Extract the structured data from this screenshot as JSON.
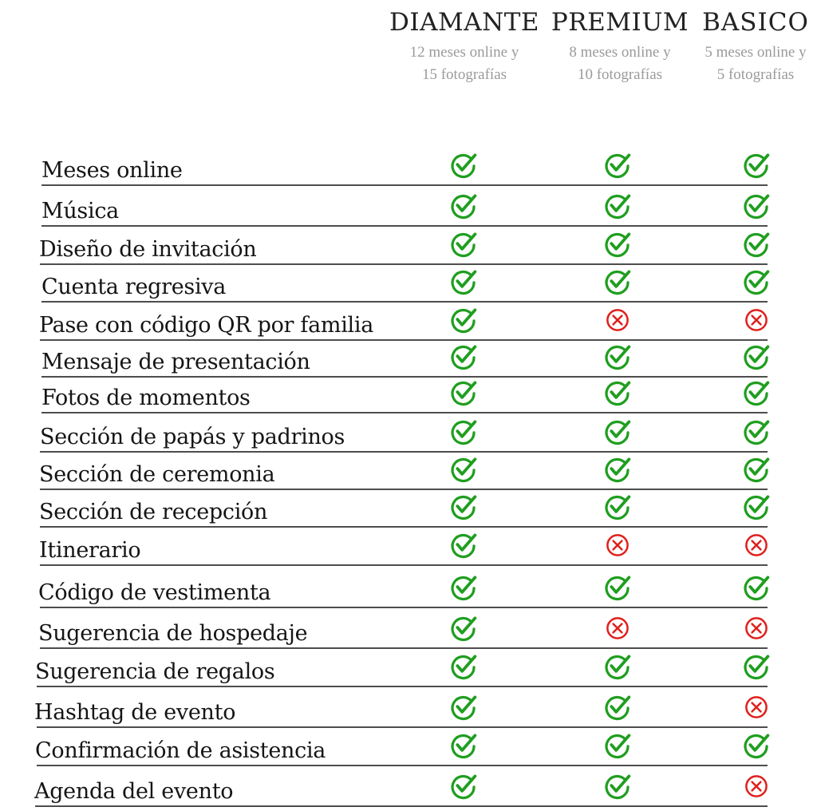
{
  "plans": [
    {
      "name": "DIAMANTE",
      "desc_line1": "12 meses online y",
      "desc_line2": "15 fotografías"
    },
    {
      "name": "PREMIUM",
      "desc_line1": "8 meses online y",
      "desc_line2": "10 fotografías"
    },
    {
      "name": "BASICO",
      "desc_line1": "5 meses online y",
      "desc_line2": "5 fotografías"
    }
  ],
  "colors": {
    "included": "#1f9e1f",
    "excluded": "#e0201c",
    "line": "#4d4d4d"
  },
  "icons": {
    "included": "check-circle-icon",
    "excluded": "x-circle-icon"
  },
  "features": [
    {
      "label": "Meses online",
      "included": [
        true,
        true,
        true
      ]
    },
    {
      "label": "Música",
      "included": [
        true,
        true,
        true
      ]
    },
    {
      "label": "Diseño de invitación",
      "included": [
        true,
        true,
        true
      ]
    },
    {
      "label": "Cuenta regresiva",
      "included": [
        true,
        true,
        true
      ]
    },
    {
      "label": "Pase con código QR por familia",
      "included": [
        true,
        false,
        false
      ]
    },
    {
      "label": "Mensaje de presentación",
      "included": [
        true,
        true,
        true
      ]
    },
    {
      "label": "Fotos de momentos",
      "included": [
        true,
        true,
        true
      ]
    },
    {
      "label": "Sección de papás y padrinos",
      "included": [
        true,
        true,
        true
      ]
    },
    {
      "label": "Sección de ceremonia",
      "included": [
        true,
        true,
        true
      ]
    },
    {
      "label": "Sección de recepción",
      "included": [
        true,
        true,
        true
      ]
    },
    {
      "label": "Itinerario",
      "included": [
        true,
        false,
        false
      ]
    },
    {
      "label": "Código de vestimenta",
      "included": [
        true,
        true,
        true
      ]
    },
    {
      "label": "Sugerencia de hospedaje",
      "included": [
        true,
        false,
        false
      ]
    },
    {
      "label": "Sugerencia de regalos",
      "included": [
        true,
        true,
        true
      ]
    },
    {
      "label": "Hashtag de evento",
      "included": [
        true,
        true,
        false
      ]
    },
    {
      "label": "Confirmación de asistencia",
      "included": [
        true,
        true,
        true
      ]
    },
    {
      "label": "Agenda del evento",
      "included": [
        true,
        true,
        false
      ]
    }
  ]
}
